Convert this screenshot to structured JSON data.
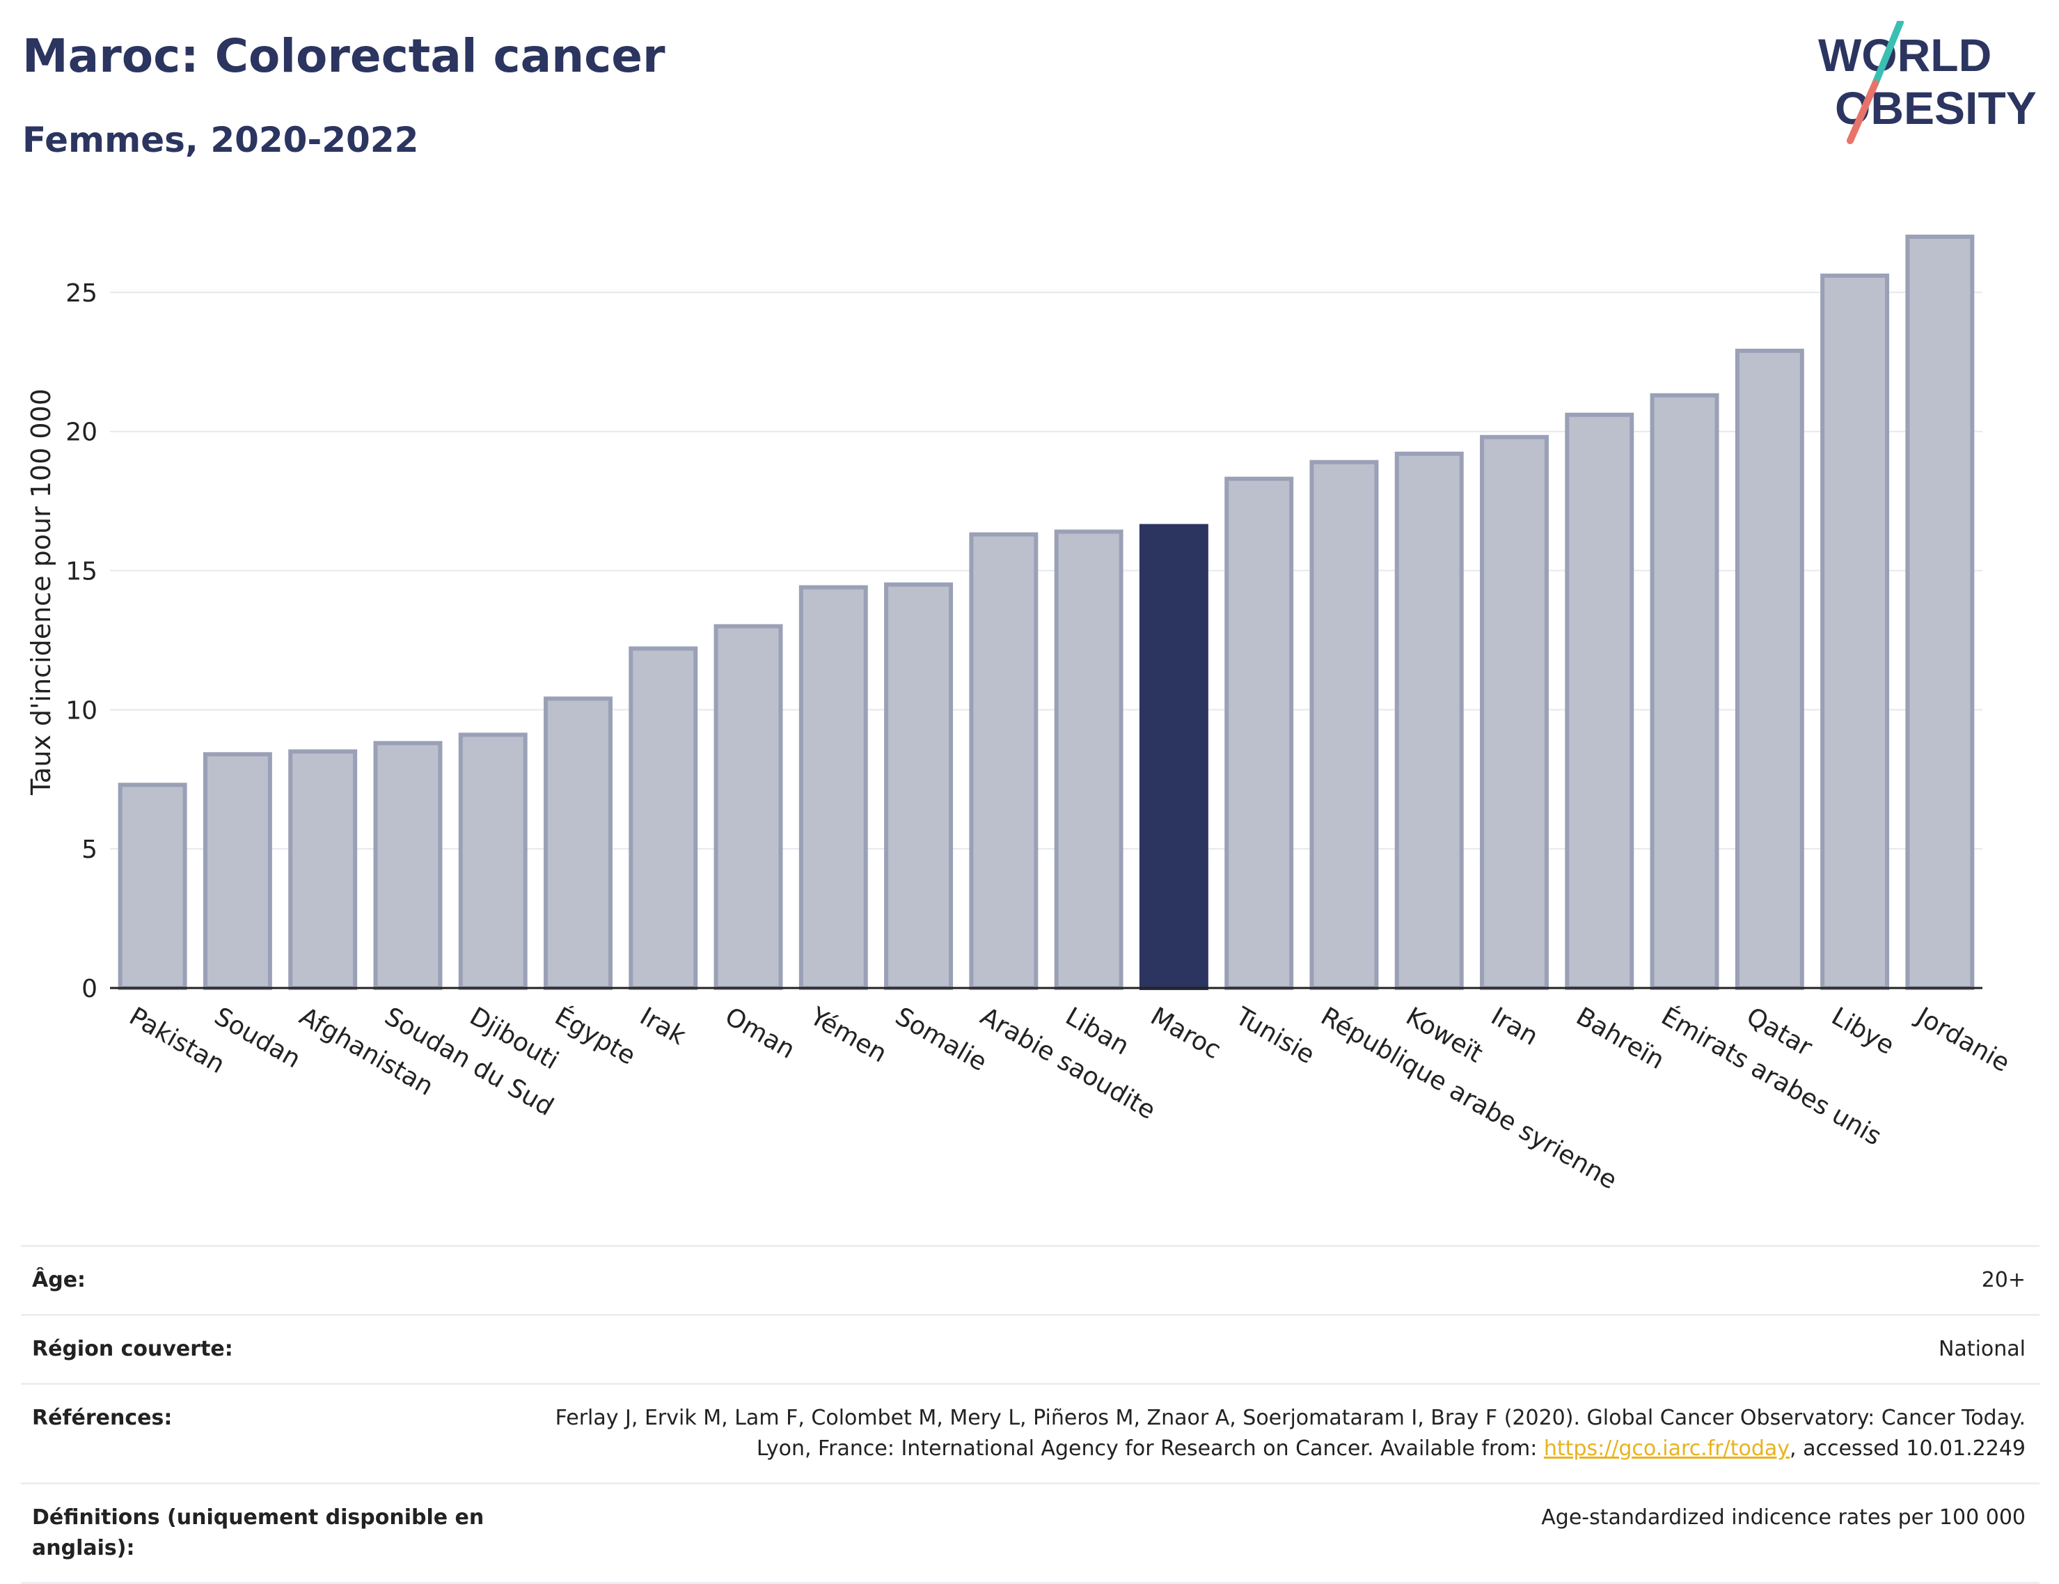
{
  "header": {
    "title": "Maroc: Colorectal cancer",
    "subtitle": "Femmes, 2020-2022",
    "logo_line1": "WORLD",
    "logo_line2": "OBESITY"
  },
  "colors": {
    "highlight": "#2b3560",
    "bar": "#bcc0cd",
    "bar_edge": "#9aa0b6",
    "title": "#2b3560",
    "logo_teal": "#3bbfb3",
    "logo_coral": "#e8736a"
  },
  "chart_data": {
    "type": "bar",
    "title": "Maroc: Colorectal cancer",
    "subtitle": "Femmes, 2020-2022",
    "xlabel": "",
    "ylabel": "Taux d'incidence pour 100 000",
    "ylim": [
      0,
      28
    ],
    "yticks": [
      0,
      5,
      10,
      15,
      20,
      25
    ],
    "grid": true,
    "highlight": "Maroc",
    "categories": [
      "Pakistan",
      "Soudan",
      "Afghanistan",
      "Soudan du Sud",
      "Djibouti",
      "Égypte",
      "Irak",
      "Oman",
      "Yémen",
      "Somalie",
      "Arabie saoudite",
      "Liban",
      "Maroc",
      "Tunisie",
      "République arabe syrienne",
      "Koweït",
      "Iran",
      "Bahreïn",
      "Émirats arabes unis",
      "Qatar",
      "Libye",
      "Jordanie"
    ],
    "values": [
      7.3,
      8.4,
      8.5,
      8.8,
      9.1,
      10.4,
      12.2,
      13.0,
      14.4,
      14.5,
      16.3,
      16.4,
      16.6,
      18.3,
      18.9,
      19.2,
      19.8,
      20.6,
      21.3,
      22.9,
      25.6,
      27.0
    ]
  },
  "table": {
    "rows": [
      {
        "key": "Âge:",
        "value": "20+"
      },
      {
        "key": "Région couverte:",
        "value": "National"
      },
      {
        "key": "Références:",
        "value": "Ferlay J, Ervik M, Lam F, Colombet M, Mery L, Piñeros M, Znaor A, Soerjomataram I, Bray F (2020). Global Cancer Observatory: Cancer Today. Lyon, France: International Agency for Research on Cancer. Available from: ",
        "link": "https://gco.iarc.fr/today",
        "suffix": ", accessed 10.01.2249"
      },
      {
        "key": "Définitions (uniquement disponible en anglais):",
        "value": "Age-standardized indicence rates per 100 000"
      }
    ]
  }
}
